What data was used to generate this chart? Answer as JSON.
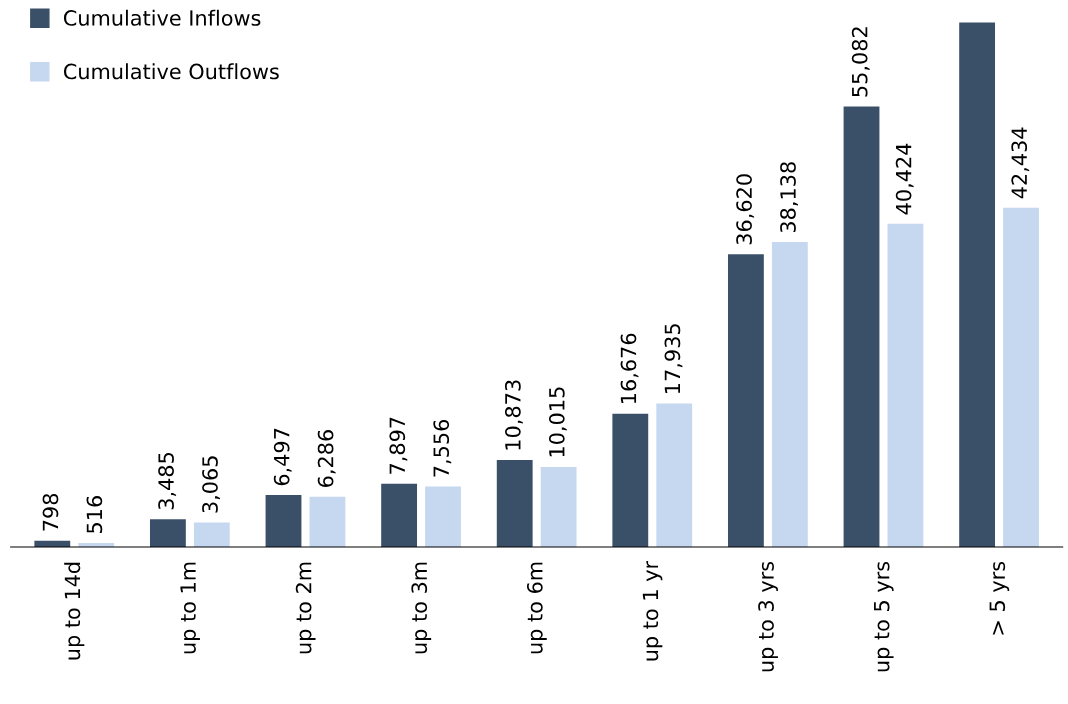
{
  "chart_data": {
    "type": "bar",
    "categories": [
      "up to 14d",
      "up to 1m",
      "up to 2m",
      "up to 3m",
      "up to 6m",
      "up to 1 yr",
      "up to 3 yrs",
      "up to 5 yrs",
      "> 5 yrs"
    ],
    "series": [
      {
        "name": "Cumulative Inflows",
        "color": "#3a5068",
        "values": [
          798,
          3485,
          6497,
          7897,
          10873,
          16676,
          36620,
          55082,
          65600
        ],
        "value_labels": [
          "798",
          "3,485",
          "6,497",
          "7,897",
          "10,873",
          "16,676",
          "36,620",
          "55,082",
          null
        ]
      },
      {
        "name": "Cumulative Outflows",
        "color": "#c6d8f0",
        "values": [
          516,
          3065,
          6286,
          7556,
          10015,
          17935,
          38138,
          40424,
          42434
        ],
        "value_labels": [
          "516",
          "3,065",
          "6,286",
          "7,556",
          "10,015",
          "17,935",
          "38,138",
          "40,424",
          "42,434"
        ]
      }
    ],
    "legend": "top left",
    "grid": false
  }
}
